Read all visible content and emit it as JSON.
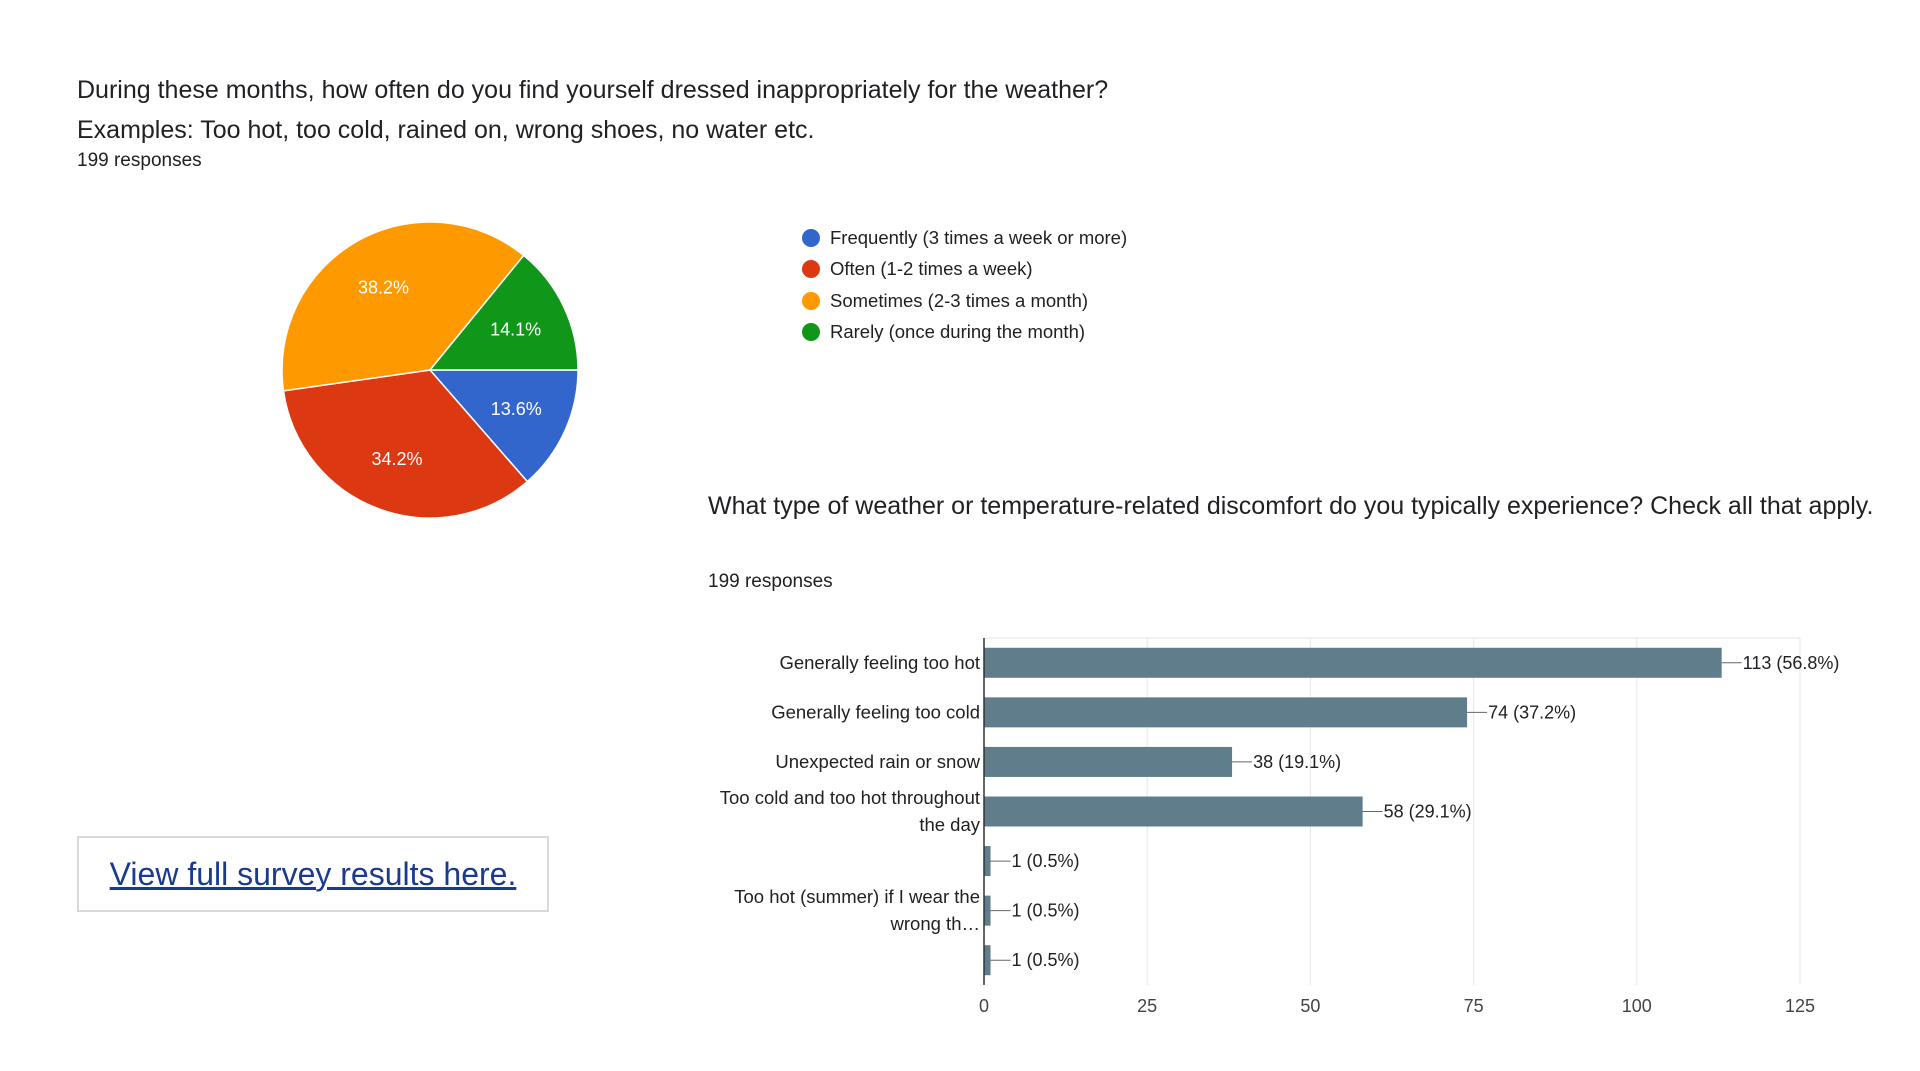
{
  "chart_data": [
    {
      "type": "pie",
      "title_lines": [
        "During these months, how often do you find yourself dressed inappropriately for the weather?",
        "Examples: Too hot, too cold, rained on, wrong shoes, no water etc."
      ],
      "responses": "199 responses",
      "slices": [
        {
          "label": "Frequently (3 times a week or more)",
          "percent": 13.6,
          "value_label": "13.6%",
          "color": "#3366cc"
        },
        {
          "label": "Often (1-2 times a week)",
          "percent": 34.2,
          "value_label": "34.2%",
          "color": "#dc3912"
        },
        {
          "label": "Sometimes (2-3 times a month)",
          "percent": 38.2,
          "value_label": "38.2%",
          "color": "#ff9900"
        },
        {
          "label": "Rarely (once during the month)",
          "percent": 14.1,
          "value_label": "14.1%",
          "color": "#109618"
        }
      ],
      "legend_position": "right"
    },
    {
      "type": "bar",
      "orientation": "horizontal",
      "title": "What type of weather or temperature-related discomfort do you typically experience? Check all that apply.",
      "responses": "199 responses",
      "bar_color": "#607d8b",
      "categories": [
        [
          "Generally feeling too hot"
        ],
        [
          "Generally feeling too cold"
        ],
        [
          "Unexpected rain or snow"
        ],
        [
          "Too cold and too hot throughout",
          "the day"
        ],
        [],
        [
          "Too hot (summer) if I wear the",
          "wrong th…"
        ],
        []
      ],
      "values": [
        113,
        74,
        38,
        58,
        1,
        1,
        1
      ],
      "data_labels": [
        "113 (56.8%)",
        "74 (37.2%)",
        "38 (19.1%)",
        "58 (29.1%)",
        "1 (0.5%)",
        "1 (0.5%)",
        "1 (0.5%)"
      ],
      "xlim": [
        0,
        125
      ],
      "xticks": [
        0,
        25,
        50,
        75,
        100,
        125
      ],
      "grid": true
    }
  ],
  "link": {
    "label": "View full survey results here."
  }
}
